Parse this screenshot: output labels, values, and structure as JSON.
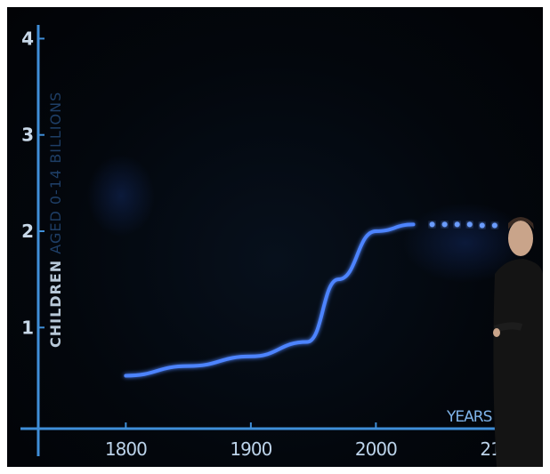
{
  "chart_data": {
    "type": "line",
    "title": "",
    "xlabel": "YEARS",
    "ylabel_parts": [
      "CHILDREN",
      " AGED 0-14 BILLIONS"
    ],
    "x_ticks": [
      "1800",
      "1900",
      "2000",
      "2100"
    ],
    "y_ticks": [
      "1",
      "2",
      "3",
      "4"
    ],
    "xlim": [
      1730,
      2125
    ],
    "ylim": [
      -0.05,
      4.05
    ],
    "grid": false,
    "series": [
      {
        "style": "solid",
        "points": [
          [
            1800,
            0.5
          ],
          [
            1850,
            0.6
          ],
          [
            1900,
            0.7
          ],
          [
            1945,
            0.85
          ],
          [
            1970,
            1.5
          ],
          [
            2000,
            2.0
          ],
          [
            2030,
            2.07
          ]
        ]
      },
      {
        "style": "dotted",
        "points": [
          [
            2045,
            2.07
          ],
          [
            2055,
            2.07
          ],
          [
            2065,
            2.07
          ],
          [
            2075,
            2.07
          ],
          [
            2085,
            2.06
          ],
          [
            2095,
            2.06
          ]
        ]
      }
    ],
    "colors": {
      "axis": "#3f8ed8",
      "line": "#4d84ff",
      "background": "#03070d"
    }
  }
}
